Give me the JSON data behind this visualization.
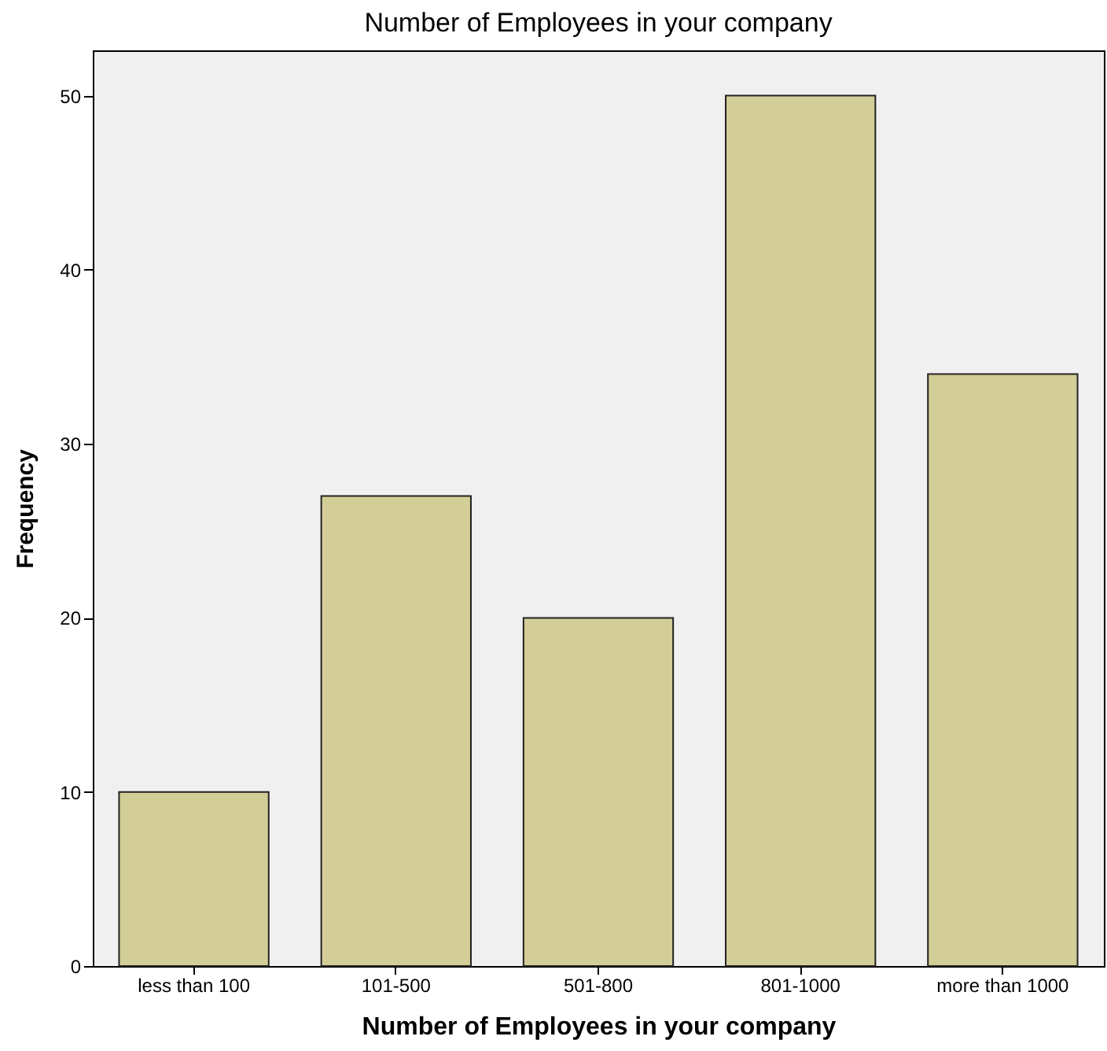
{
  "chart_data": {
    "type": "bar",
    "title": "Number of Employees in your company",
    "xlabel": "Number of Employees in your company",
    "ylabel": "Frequency",
    "categories": [
      "less than 100",
      "101-500",
      "501-800",
      "801-1000",
      "more than 1000"
    ],
    "values": [
      10,
      27,
      20,
      50,
      34
    ],
    "color": "#d3ce97",
    "ylim": [
      0,
      52.6
    ],
    "yticks": [
      0,
      10,
      20,
      30,
      40,
      50
    ],
    "grid": false
  }
}
